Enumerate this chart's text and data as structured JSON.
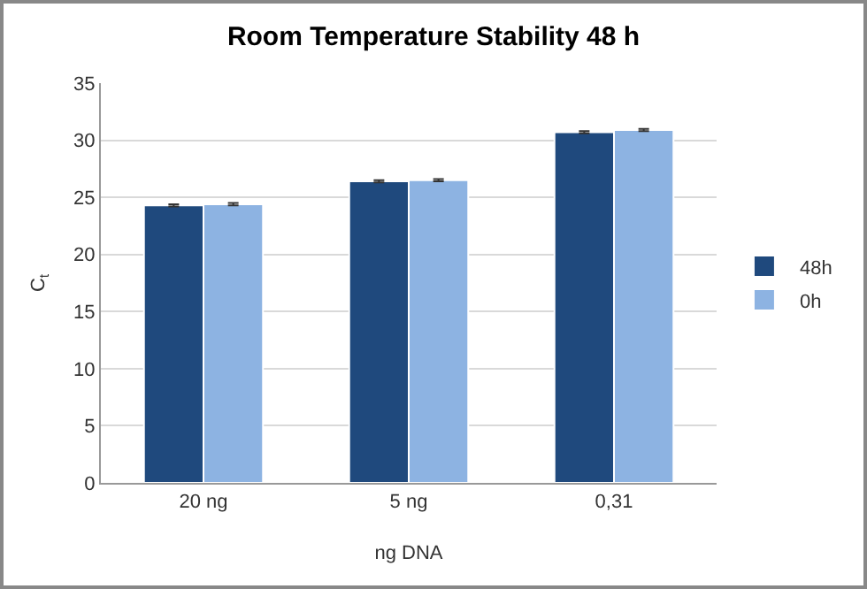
{
  "chart_data": {
    "type": "bar",
    "title": "Room Temperature Stability 48 h",
    "xlabel": "ng DNA",
    "ylabel": "C$_{t}$",
    "categories": [
      "20 ng",
      "5 ng",
      "0,31"
    ],
    "series": [
      {
        "name": "48h",
        "color": "#1f497d",
        "values": [
          24.3,
          26.4,
          30.7
        ],
        "errors": [
          0.1,
          0.1,
          0.1
        ]
      },
      {
        "name": "0h",
        "color": "#8db3e2",
        "values": [
          24.4,
          26.5,
          30.9
        ],
        "errors": [
          0.1,
          0.1,
          0.1
        ]
      }
    ],
    "ylim": [
      0,
      35
    ],
    "yticks": [
      0,
      5,
      10,
      15,
      20,
      25,
      30,
      35
    ],
    "grid": "y",
    "legend": "right"
  }
}
